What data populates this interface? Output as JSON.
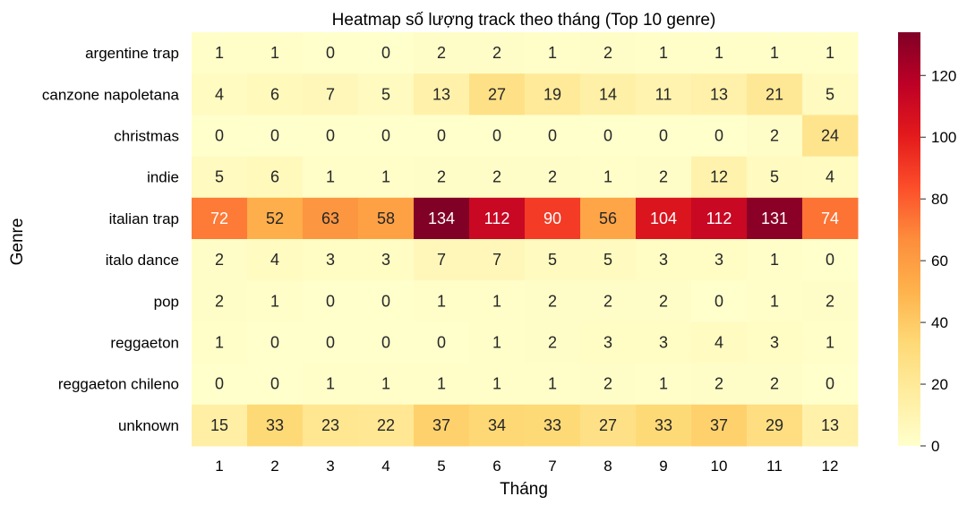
{
  "chart_data": {
    "type": "heatmap",
    "title": "Heatmap số lượng track theo tháng (Top 10 genre)",
    "xlabel": "Tháng",
    "ylabel": "Genre",
    "x": [
      "1",
      "2",
      "3",
      "4",
      "5",
      "6",
      "7",
      "8",
      "9",
      "10",
      "11",
      "12"
    ],
    "y": [
      "argentine trap",
      "canzone napoletana",
      "christmas",
      "indie",
      "italian trap",
      "italo dance",
      "pop",
      "reggaeton",
      "reggaeton chileno",
      "unknown"
    ],
    "values": [
      [
        1,
        1,
        0,
        0,
        2,
        2,
        1,
        2,
        1,
        1,
        1,
        1
      ],
      [
        4,
        6,
        7,
        5,
        13,
        27,
        19,
        14,
        11,
        13,
        21,
        5
      ],
      [
        0,
        0,
        0,
        0,
        0,
        0,
        0,
        0,
        0,
        0,
        2,
        24
      ],
      [
        5,
        6,
        1,
        1,
        2,
        2,
        2,
        1,
        2,
        12,
        5,
        4
      ],
      [
        72,
        52,
        63,
        58,
        134,
        112,
        90,
        56,
        104,
        112,
        131,
        74
      ],
      [
        2,
        4,
        3,
        3,
        7,
        7,
        5,
        5,
        3,
        3,
        1,
        0
      ],
      [
        2,
        1,
        0,
        0,
        1,
        1,
        2,
        2,
        2,
        0,
        1,
        2
      ],
      [
        1,
        0,
        0,
        0,
        0,
        1,
        2,
        3,
        3,
        4,
        3,
        1
      ],
      [
        0,
        0,
        1,
        1,
        1,
        1,
        1,
        2,
        1,
        2,
        2,
        0
      ],
      [
        15,
        33,
        23,
        22,
        37,
        34,
        33,
        27,
        33,
        37,
        29,
        13
      ]
    ],
    "colormap": "YlOrRd",
    "vmin": 0,
    "vmax": 134,
    "colorbar_ticks": [
      0,
      20,
      40,
      60,
      80,
      100,
      120
    ],
    "annotated": true,
    "grid": false
  }
}
